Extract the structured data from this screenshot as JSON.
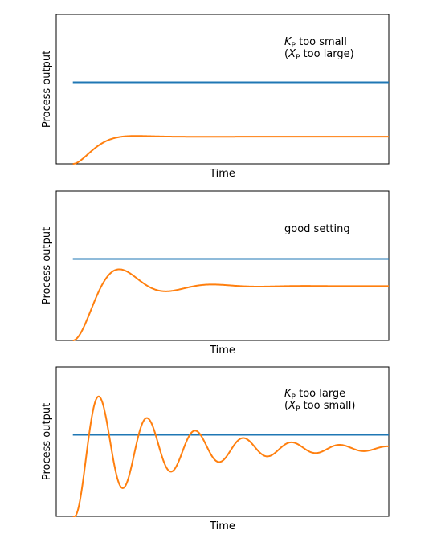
{
  "chart_data": [
    {
      "type": "line",
      "xlabel": "Time",
      "ylabel": "Process output",
      "annotation": {
        "line1_var": "K",
        "line1_sub": "P",
        "line1_rest": " too small",
        "line2_open": "(",
        "line2_var": "X",
        "line2_sub": "P",
        "line2_rest": " too large)"
      },
      "xlim": [
        0,
        10
      ],
      "ylim": [
        0,
        1.65
      ],
      "series": [
        {
          "role": "setpoint",
          "color": "#1f77b4",
          "x": [
            0.5,
            10
          ],
          "y": [
            0.9,
            0.9
          ]
        },
        {
          "role": "response",
          "color": "#ff7f0e",
          "zeta": 0.75,
          "omega": 2.5,
          "gain": 0.3,
          "delay": 0.5
        }
      ]
    },
    {
      "type": "line",
      "xlabel": "Time",
      "ylabel": "Process output",
      "annotation": {
        "text": "good setting"
      },
      "xlim": [
        0,
        10
      ],
      "ylim": [
        0,
        1.65
      ],
      "series": [
        {
          "role": "setpoint",
          "color": "#1f77b4",
          "x": [
            0.5,
            10
          ],
          "y": [
            0.9,
            0.9
          ]
        },
        {
          "role": "response",
          "color": "#ff7f0e",
          "zeta": 0.35,
          "omega": 2.4,
          "gain": 0.6,
          "delay": 0.5
        }
      ]
    },
    {
      "type": "line",
      "xlabel": "Time",
      "ylabel": "Process output",
      "annotation": {
        "line1_var": "K",
        "line1_sub": "P",
        "line1_rest": " too large",
        "line2_open": "(",
        "line2_var": "X",
        "line2_sub": "P",
        "line2_rest": " too small)"
      },
      "xlim": [
        0,
        10
      ],
      "ylim": [
        0,
        1.65
      ],
      "series": [
        {
          "role": "setpoint",
          "color": "#1f77b4",
          "x": [
            0.5,
            10
          ],
          "y": [
            0.9,
            0.9
          ]
        },
        {
          "role": "response",
          "color": "#ff7f0e",
          "zeta": 0.085,
          "omega": 4.35,
          "gain": 0.75,
          "delay": 0.55
        }
      ]
    }
  ]
}
